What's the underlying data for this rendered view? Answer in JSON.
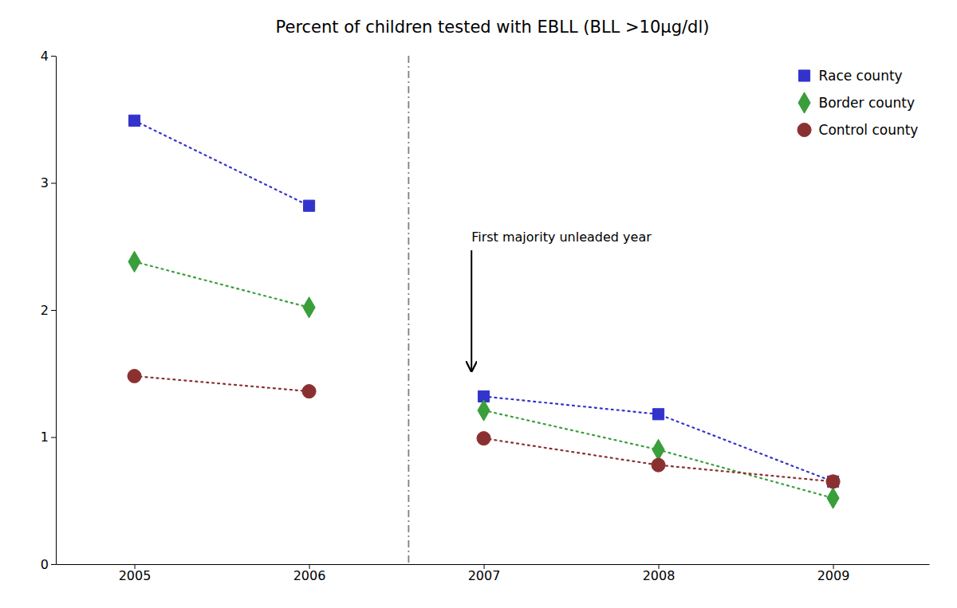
{
  "chart_data": {
    "type": "line",
    "title": "Percent of children tested with EBLL (BLL >10μg/dl)",
    "series": [
      {
        "name": "Race county",
        "color": "#3333cc",
        "marker": "square",
        "line_style": "dotted",
        "x": [
          2005,
          2006
        ],
        "values": [
          3.49,
          2.82
        ]
      },
      {
        "name": "Race county",
        "color": "#3333cc",
        "marker": "square",
        "line_style": "dotted",
        "x": [
          2007,
          2008,
          2009
        ],
        "values": [
          1.32,
          1.18,
          0.65
        ]
      },
      {
        "name": "Border county",
        "color": "#3a9e3a",
        "marker": "diamond",
        "line_style": "dotted",
        "x": [
          2005,
          2006
        ],
        "values": [
          2.38,
          2.02
        ]
      },
      {
        "name": "Border county",
        "color": "#3a9e3a",
        "marker": "diamond",
        "line_style": "dotted",
        "x": [
          2007,
          2008,
          2009
        ],
        "values": [
          1.21,
          0.9,
          0.52
        ]
      },
      {
        "name": "Control county",
        "color": "#8b3030",
        "marker": "circle",
        "line_style": "dotted",
        "x": [
          2005,
          2006
        ],
        "values": [
          1.48,
          1.36
        ]
      },
      {
        "name": "Control county",
        "color": "#8b3030",
        "marker": "circle",
        "line_style": "dotted",
        "x": [
          2007,
          2008,
          2009
        ],
        "values": [
          0.99,
          0.78,
          0.65
        ]
      }
    ],
    "xlim": [
      2004.55,
      2009.55
    ],
    "xticks": [
      2005,
      2006,
      2007,
      2008,
      2009
    ],
    "ylim": [
      0,
      4
    ],
    "yticks": [
      0,
      1,
      2,
      3,
      4
    ],
    "vline_x": 2006.57,
    "annotations": [
      {
        "text": "First majority unleaded year",
        "x": 2006.93,
        "y_text": 2.62,
        "y_arrow": 1.52
      }
    ],
    "legend": "upper right",
    "grid": false
  }
}
